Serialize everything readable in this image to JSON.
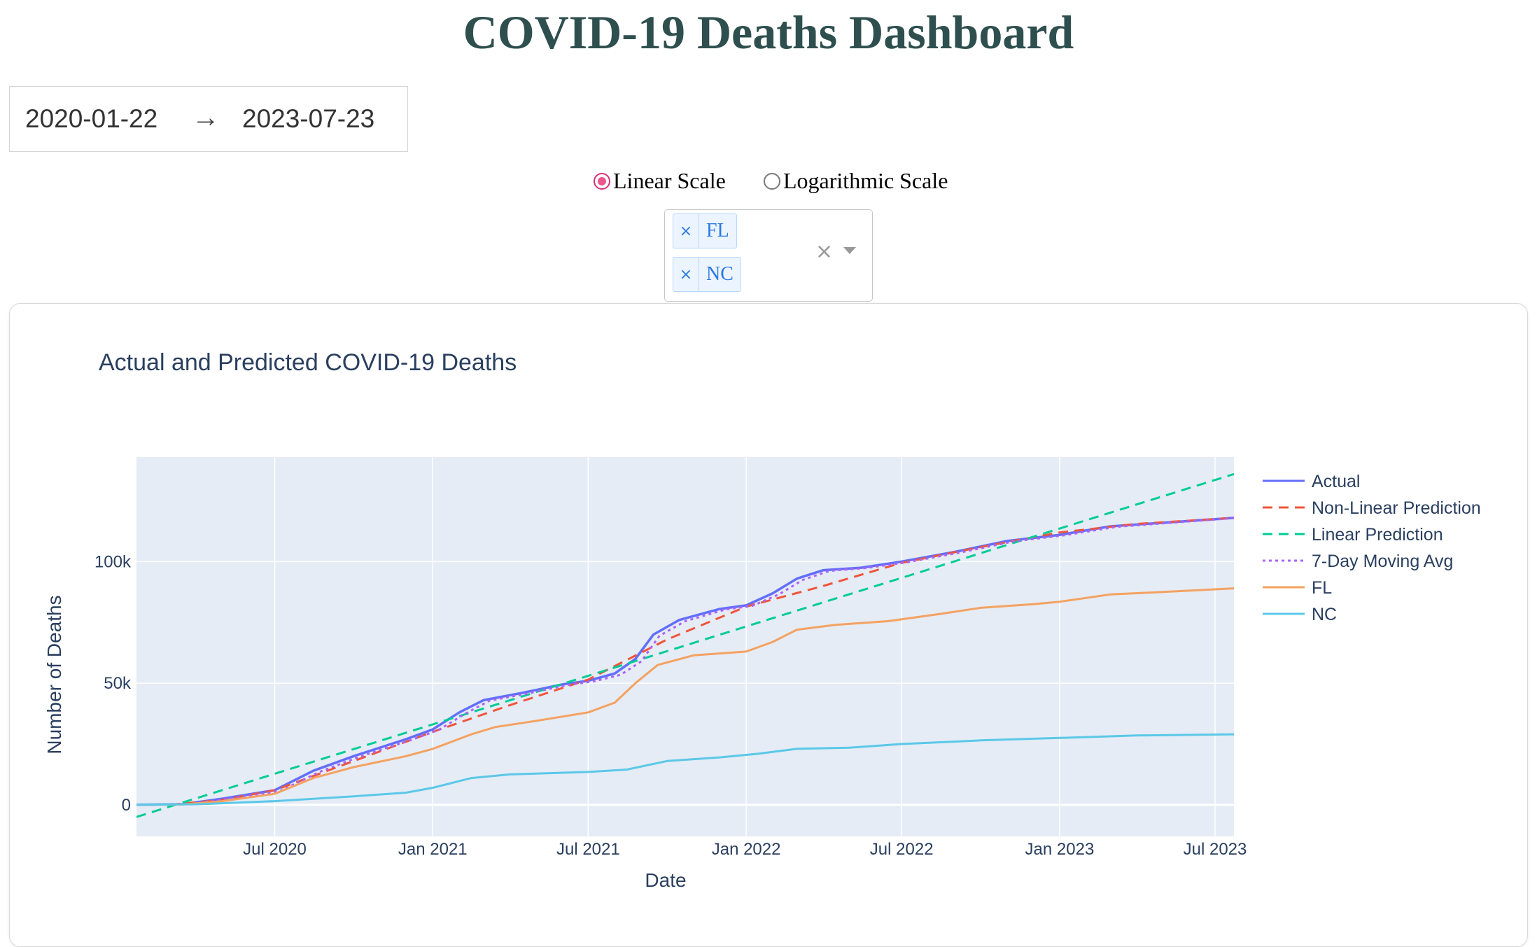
{
  "page": {
    "title": "COVID-19 Deaths Dashboard"
  },
  "date_range": {
    "start": "2020-01-22",
    "arrow": "→",
    "end": "2023-07-23"
  },
  "scale": {
    "options": [
      {
        "label": "Linear Scale",
        "checked": true
      },
      {
        "label": "Logarithmic Scale",
        "checked": false
      }
    ]
  },
  "state_select": {
    "tags": [
      {
        "label": "FL",
        "remove": "×"
      },
      {
        "label": "NC",
        "remove": "×"
      }
    ],
    "clear_glyph": "×"
  },
  "chart_data": {
    "type": "line",
    "title": "Actual and Predicted COVID-19 Deaths",
    "xlabel": "Date",
    "ylabel": "Number of Deaths",
    "x_range": [
      "2020-01-22",
      "2023-07-23"
    ],
    "ylim": [
      -13000,
      143000
    ],
    "x_ticks": [
      {
        "date": "2020-07-01",
        "label": "Jul 2020"
      },
      {
        "date": "2021-01-01",
        "label": "Jan 2021"
      },
      {
        "date": "2021-07-01",
        "label": "Jul 2021"
      },
      {
        "date": "2022-01-01",
        "label": "Jan 2022"
      },
      {
        "date": "2022-07-01",
        "label": "Jul 2022"
      },
      {
        "date": "2023-01-01",
        "label": "Jan 2023"
      },
      {
        "date": "2023-07-01",
        "label": "Jul 2023"
      }
    ],
    "y_ticks": [
      {
        "value": 0,
        "label": "0"
      },
      {
        "value": 50000,
        "label": "50k"
      },
      {
        "value": 100000,
        "label": "100k"
      }
    ],
    "grid": true,
    "legend_position": "right",
    "series": [
      {
        "name": "Actual",
        "color": "#636efa",
        "dash": "solid",
        "points": [
          [
            "2020-01-22",
            0
          ],
          [
            "2020-03-15",
            200
          ],
          [
            "2020-05-01",
            2500
          ],
          [
            "2020-07-01",
            6000
          ],
          [
            "2020-08-15",
            14000
          ],
          [
            "2020-10-01",
            20000
          ],
          [
            "2020-12-01",
            27000
          ],
          [
            "2021-01-01",
            31000
          ],
          [
            "2021-02-01",
            38000
          ],
          [
            "2021-03-01",
            43000
          ],
          [
            "2021-04-15",
            46000
          ],
          [
            "2021-06-01",
            49500
          ],
          [
            "2021-07-01",
            51000
          ],
          [
            "2021-08-01",
            54000
          ],
          [
            "2021-08-25",
            60000
          ],
          [
            "2021-09-15",
            70000
          ],
          [
            "2021-10-15",
            76000
          ],
          [
            "2021-12-01",
            80500
          ],
          [
            "2022-01-01",
            82000
          ],
          [
            "2022-02-01",
            87000
          ],
          [
            "2022-03-01",
            93000
          ],
          [
            "2022-04-01",
            96500
          ],
          [
            "2022-05-15",
            97500
          ],
          [
            "2022-07-01",
            100000
          ],
          [
            "2022-09-01",
            104000
          ],
          [
            "2022-11-01",
            108500
          ],
          [
            "2023-01-01",
            111000
          ],
          [
            "2023-03-01",
            114500
          ],
          [
            "2023-07-23",
            118000
          ]
        ]
      },
      {
        "name": "Non-Linear Prediction",
        "color": "#ef553b",
        "dash": "dashed",
        "points": [
          [
            "2020-03-01",
            0
          ],
          [
            "2020-05-01",
            2000
          ],
          [
            "2020-07-01",
            6000
          ],
          [
            "2020-10-01",
            18000
          ],
          [
            "2021-01-01",
            30000
          ],
          [
            "2021-04-01",
            41000
          ],
          [
            "2021-07-01",
            51500
          ],
          [
            "2021-10-01",
            68000
          ],
          [
            "2022-01-01",
            81500
          ],
          [
            "2022-04-01",
            90000
          ],
          [
            "2022-07-01",
            99500
          ],
          [
            "2022-10-01",
            106000
          ],
          [
            "2023-01-01",
            112000
          ],
          [
            "2023-04-01",
            115500
          ],
          [
            "2023-07-23",
            118000
          ]
        ]
      },
      {
        "name": "Linear Prediction",
        "color": "#00cc96",
        "dash": "dashed",
        "points": [
          [
            "2020-01-22",
            -5000
          ],
          [
            "2023-07-23",
            136000
          ]
        ]
      },
      {
        "name": "7-Day Moving Avg",
        "color": "#ab63fa",
        "dash": "dotted",
        "points": [
          [
            "2020-01-29",
            0
          ],
          [
            "2020-03-22",
            200
          ],
          [
            "2020-05-08",
            2400
          ],
          [
            "2020-07-08",
            5800
          ],
          [
            "2020-08-22",
            13500
          ],
          [
            "2020-10-08",
            19800
          ],
          [
            "2020-12-08",
            26800
          ],
          [
            "2021-01-08",
            30800
          ],
          [
            "2021-02-08",
            37500
          ],
          [
            "2021-03-08",
            42800
          ],
          [
            "2021-04-22",
            45800
          ],
          [
            "2021-06-08",
            49300
          ],
          [
            "2021-07-08",
            50800
          ],
          [
            "2021-08-08",
            53500
          ],
          [
            "2021-09-01",
            59000
          ],
          [
            "2021-09-22",
            69500
          ],
          [
            "2021-10-22",
            75500
          ],
          [
            "2021-12-08",
            80300
          ],
          [
            "2022-01-08",
            81800
          ],
          [
            "2022-02-08",
            86500
          ],
          [
            "2022-03-08",
            92500
          ],
          [
            "2022-04-08",
            96200
          ],
          [
            "2022-05-22",
            97400
          ],
          [
            "2022-07-08",
            99800
          ],
          [
            "2022-09-08",
            103800
          ],
          [
            "2022-11-08",
            108300
          ],
          [
            "2023-01-08",
            110900
          ],
          [
            "2023-03-08",
            114300
          ],
          [
            "2023-07-23",
            117900
          ]
        ]
      },
      {
        "name": "FL",
        "color": "#f4a261",
        "dash": "solid",
        "points": [
          [
            "2020-01-22",
            0
          ],
          [
            "2020-03-15",
            100
          ],
          [
            "2020-05-01",
            1500
          ],
          [
            "2020-07-01",
            4500
          ],
          [
            "2020-08-15",
            11000
          ],
          [
            "2020-10-01",
            15500
          ],
          [
            "2020-12-01",
            20000
          ],
          [
            "2021-01-01",
            23000
          ],
          [
            "2021-02-15",
            29000
          ],
          [
            "2021-03-15",
            32000
          ],
          [
            "2021-05-01",
            34500
          ],
          [
            "2021-07-01",
            38000
          ],
          [
            "2021-08-01",
            42000
          ],
          [
            "2021-08-25",
            50000
          ],
          [
            "2021-09-20",
            57500
          ],
          [
            "2021-11-01",
            61500
          ],
          [
            "2022-01-01",
            63000
          ],
          [
            "2022-02-01",
            67000
          ],
          [
            "2022-03-01",
            72000
          ],
          [
            "2022-04-15",
            74000
          ],
          [
            "2022-06-15",
            75500
          ],
          [
            "2022-08-15",
            78500
          ],
          [
            "2022-10-01",
            81000
          ],
          [
            "2022-12-01",
            82500
          ],
          [
            "2023-01-01",
            83500
          ],
          [
            "2023-03-01",
            86500
          ],
          [
            "2023-05-01",
            87500
          ],
          [
            "2023-07-23",
            89000
          ]
        ]
      },
      {
        "name": "NC",
        "color": "#5bc8e8",
        "dash": "solid",
        "points": [
          [
            "2020-01-22",
            0
          ],
          [
            "2020-04-01",
            200
          ],
          [
            "2020-07-01",
            1500
          ],
          [
            "2020-10-01",
            3500
          ],
          [
            "2020-12-01",
            5000
          ],
          [
            "2021-01-01",
            7000
          ],
          [
            "2021-02-15",
            11000
          ],
          [
            "2021-04-01",
            12500
          ],
          [
            "2021-07-01",
            13500
          ],
          [
            "2021-08-15",
            14500
          ],
          [
            "2021-10-01",
            18000
          ],
          [
            "2021-12-01",
            19500
          ],
          [
            "2022-01-15",
            21000
          ],
          [
            "2022-03-01",
            23000
          ],
          [
            "2022-05-01",
            23500
          ],
          [
            "2022-07-01",
            25000
          ],
          [
            "2022-10-01",
            26500
          ],
          [
            "2023-01-01",
            27500
          ],
          [
            "2023-04-01",
            28500
          ],
          [
            "2023-07-23",
            29000
          ]
        ]
      }
    ]
  }
}
